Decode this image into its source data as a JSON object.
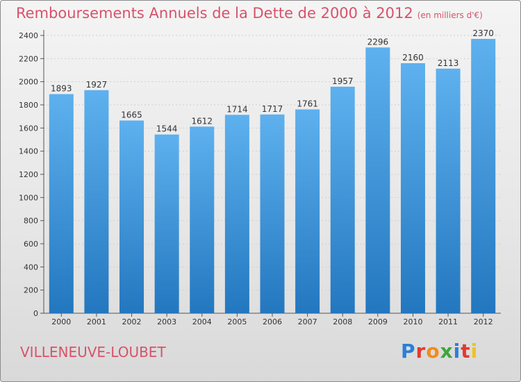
{
  "title": "Remboursements Annuels de la Dette de 2000 à 2012",
  "subtitle": "(en milliers d'€)",
  "location": "VILLENEUVE-LOUBET",
  "logo": {
    "text": "Proxiti",
    "letters": [
      {
        "ch": "P",
        "color": "#2b7fd6"
      },
      {
        "ch": "r",
        "color": "#e23a2e"
      },
      {
        "ch": "o",
        "color": "#f28c1a"
      },
      {
        "ch": "x",
        "color": "#3da63d"
      },
      {
        "ch": "i",
        "color": "#2b7fd6"
      },
      {
        "ch": "t",
        "color": "#e23a2e"
      },
      {
        "ch": "i",
        "color": "#f2c21a"
      }
    ]
  },
  "colors": {
    "title": "#d8526a",
    "bar_top": "#5eb1ee",
    "bar_bottom": "#2377bf",
    "grid": "#cfcfcf"
  },
  "chart_data": {
    "type": "bar",
    "title": "Remboursements Annuels de la Dette de 2000 à 2012",
    "subtitle": "(en milliers d'€)",
    "xlabel": "",
    "ylabel": "",
    "categories": [
      "2000",
      "2001",
      "2002",
      "2003",
      "2004",
      "2005",
      "2006",
      "2007",
      "2008",
      "2009",
      "2010",
      "2011",
      "2012"
    ],
    "values": [
      1893,
      1927,
      1665,
      1544,
      1612,
      1714,
      1717,
      1761,
      1957,
      2296,
      2160,
      2113,
      2370
    ],
    "value_labels": [
      "1893",
      "1927",
      "1665",
      "1544",
      "1612",
      "1714",
      "1717",
      "1761",
      "1957",
      "2296",
      "2160",
      "2113",
      "2370"
    ],
    "ylim": [
      0,
      2400
    ],
    "yticks": [
      0,
      200,
      400,
      600,
      800,
      1000,
      1200,
      1400,
      1600,
      1800,
      2000,
      2200,
      2400
    ],
    "grid": true,
    "legend": "none"
  }
}
